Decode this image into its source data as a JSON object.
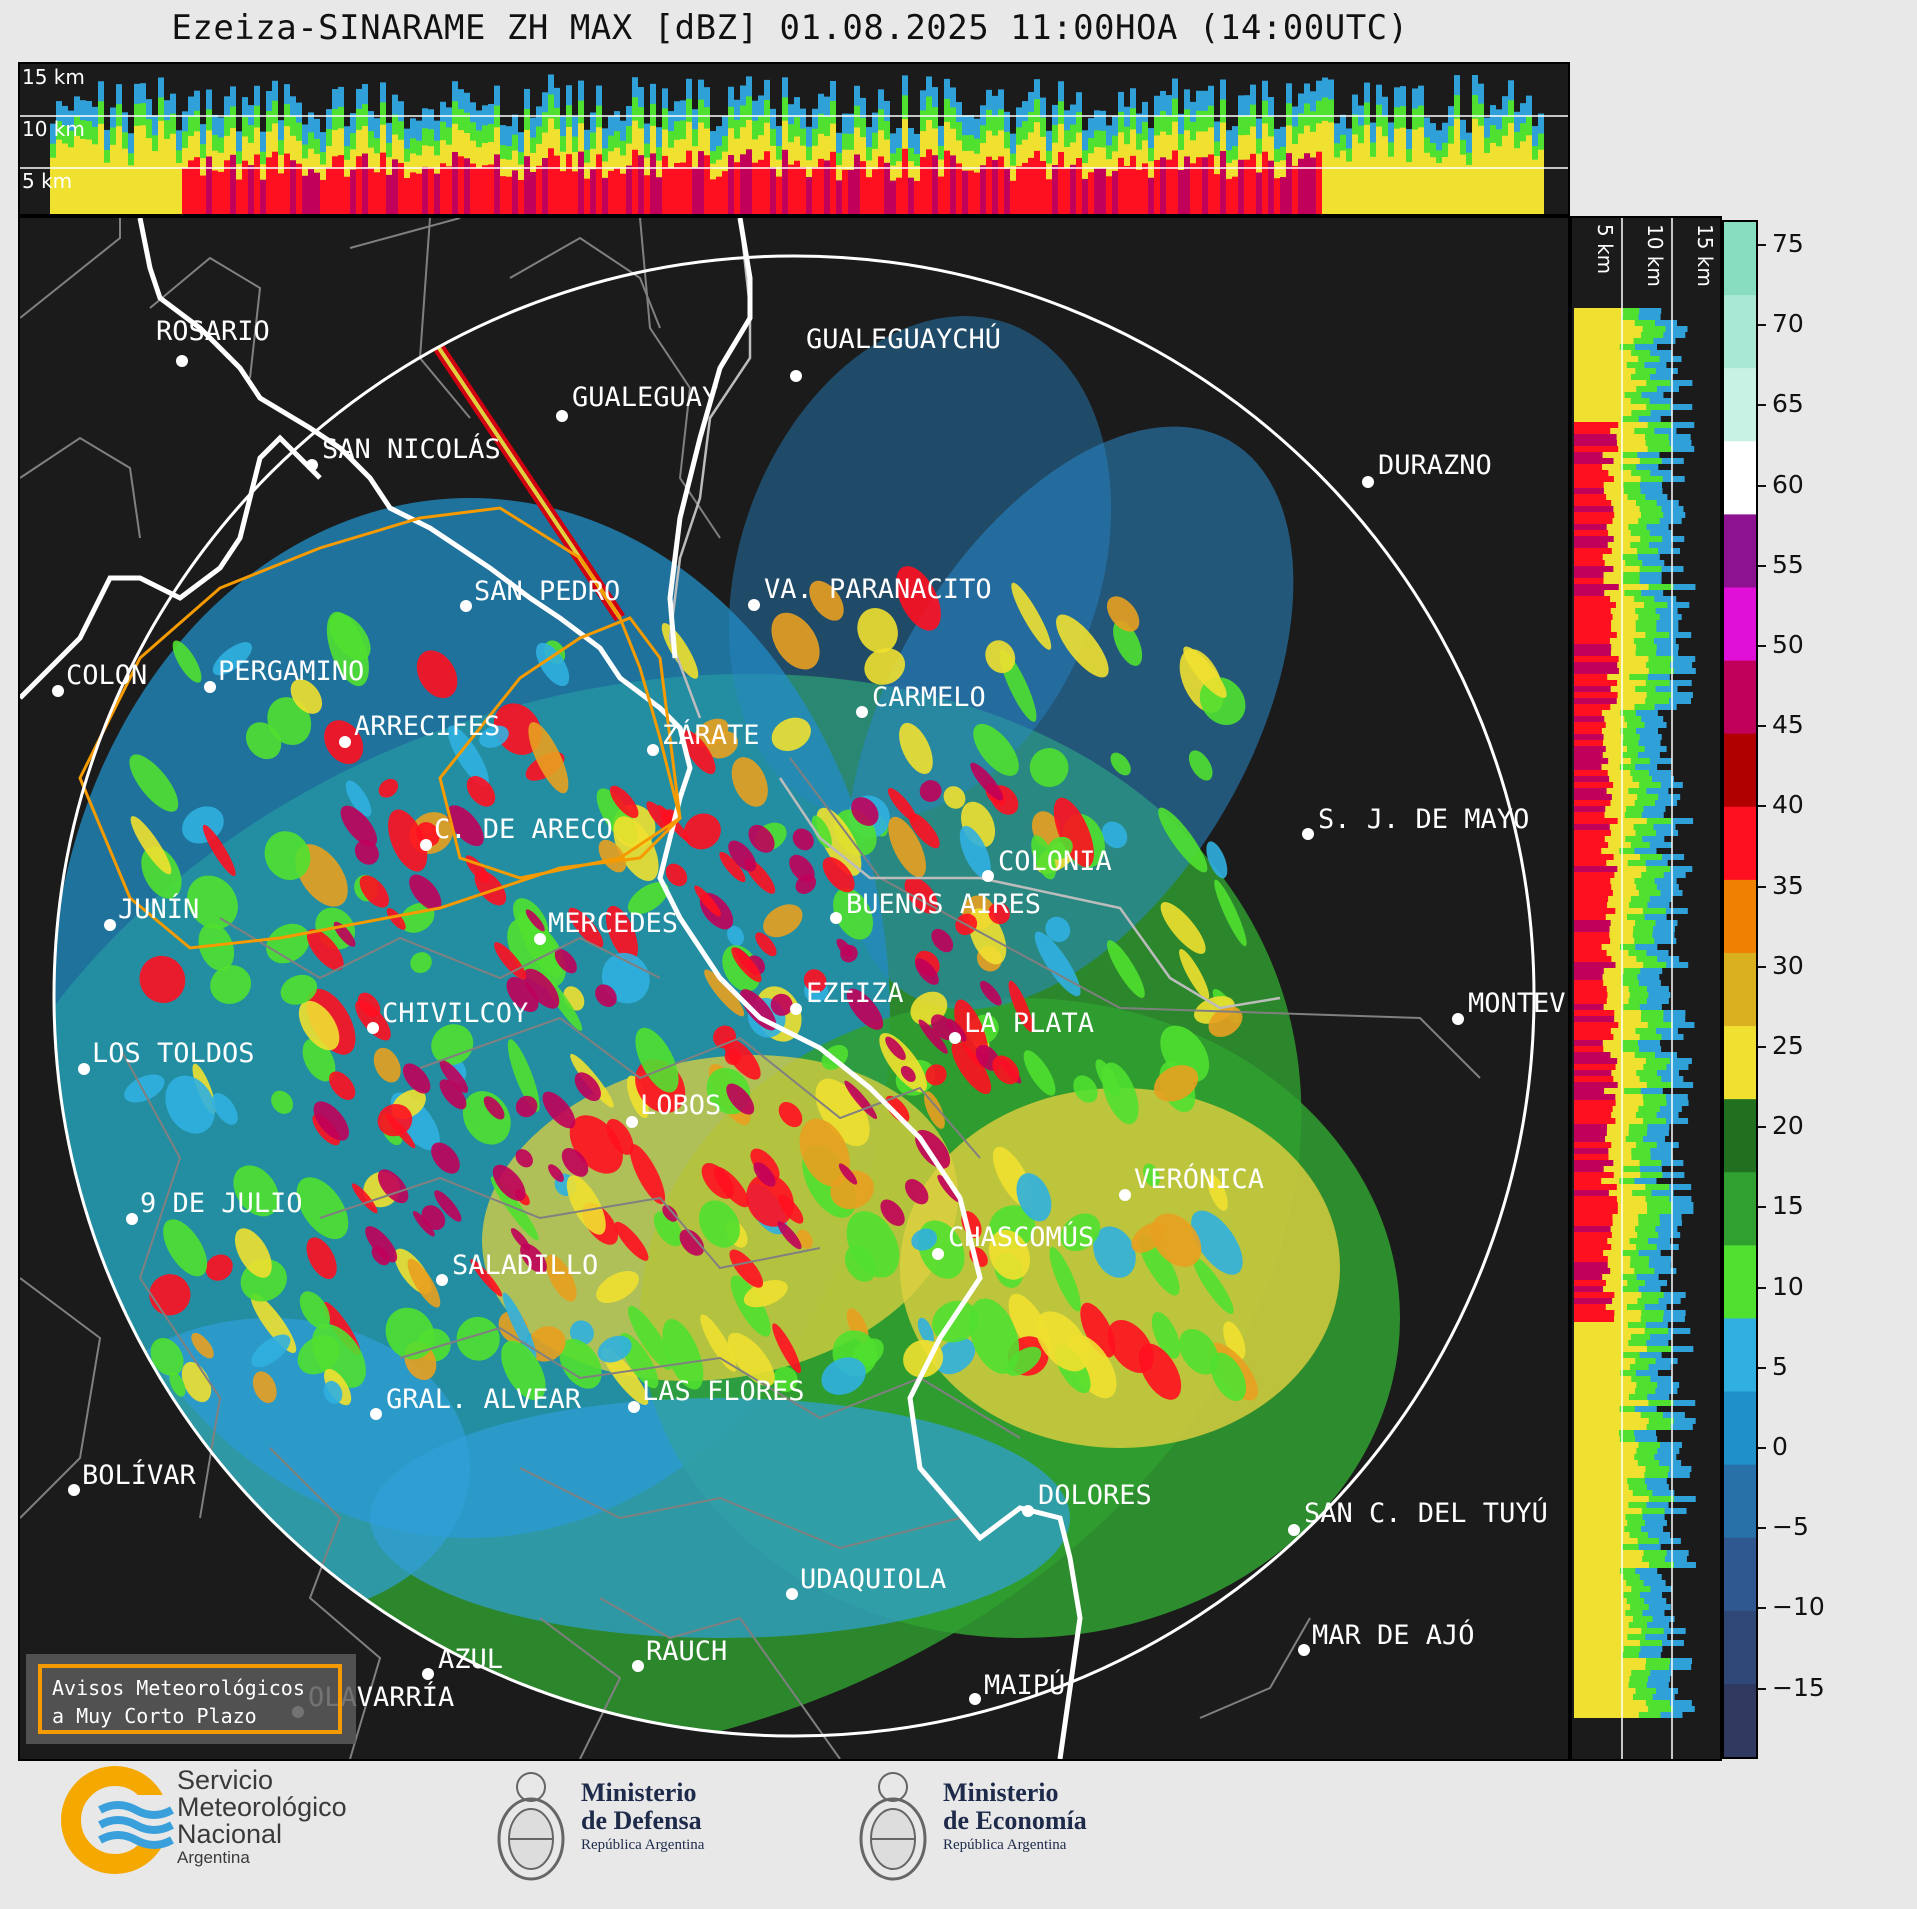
{
  "title": "Ezeiza-SINARAME ZH MAX [dBZ] 01.08.2025 11:00HOA (14:00UTC)",
  "top_profile": {
    "labels": [
      "15 km",
      "10 km",
      "5 km"
    ]
  },
  "side_profile": {
    "labels": [
      "5 km",
      "10 km",
      "15 km"
    ]
  },
  "colorbar": {
    "ticks": [
      "75",
      "70",
      "65",
      "60",
      "55",
      "50",
      "45",
      "40",
      "35",
      "30",
      "25",
      "20",
      "15",
      "10",
      "5",
      "0",
      "−5",
      "−10",
      "−15"
    ],
    "stops": [
      "#88dcc0",
      "#a8e8d4",
      "#c8f2e4",
      "#ffffff",
      "#8c1290",
      "#e010d8",
      "#c0005a",
      "#b00000",
      "#ff1020",
      "#f08000",
      "#d8b020",
      "#f0e030",
      "#207020",
      "#30a030",
      "#50e030",
      "#30b0e0",
      "#2090c8",
      "#2870a8",
      "#305890",
      "#304878",
      "#303a60"
    ]
  },
  "cities": [
    {
      "name": "ROSARIO",
      "color": "#fff"
    },
    {
      "name": "GUALEGUAYCHÚ",
      "color": "#fff"
    },
    {
      "name": "GUALEGUAY",
      "color": "#fff"
    },
    {
      "name": "SAN NICOLÁS",
      "color": "#fff"
    },
    {
      "name": "DURAZNO",
      "color": "#fff"
    },
    {
      "name": "SAN PEDRO",
      "color": "#fff"
    },
    {
      "name": "VA. PARANACITO",
      "color": "#fff"
    },
    {
      "name": "COLON",
      "color": "#fff"
    },
    {
      "name": "PERGAMINO",
      "color": "#fff"
    },
    {
      "name": "CARMELO",
      "color": "#fff"
    },
    {
      "name": "ARRECIFES",
      "color": "#fff"
    },
    {
      "name": "ZÁRATE",
      "color": "#fff"
    },
    {
      "name": "S. J. DE MAYO",
      "color": "#fff"
    },
    {
      "name": "C. DE ARECO",
      "color": "#fff"
    },
    {
      "name": "COLONIA",
      "color": "#fff"
    },
    {
      "name": "JUNÍN",
      "color": "#fff"
    },
    {
      "name": "BUENOS AIRES",
      "color": "#fff"
    },
    {
      "name": "MERCEDES",
      "color": "#fff"
    },
    {
      "name": "MONTEV",
      "color": "#fff"
    },
    {
      "name": "EZEIZA",
      "color": "#fff"
    },
    {
      "name": "CHIVILCOY",
      "color": "#fff"
    },
    {
      "name": "LA PLATA",
      "color": "#fff"
    },
    {
      "name": "LOS TOLDOS",
      "color": "#fff"
    },
    {
      "name": "LOBOS",
      "color": "#fff"
    },
    {
      "name": "VERÓNICA",
      "color": "#fff"
    },
    {
      "name": "9 DE JULIO",
      "color": "#fff"
    },
    {
      "name": "CHASCOMÚS",
      "color": "#fff"
    },
    {
      "name": "SALADILLO",
      "color": "#fff"
    },
    {
      "name": "GRAL. ALVEAR",
      "color": "#fff"
    },
    {
      "name": "LAS FLORES",
      "color": "#fff"
    },
    {
      "name": "BOLÍVAR",
      "color": "#fff"
    },
    {
      "name": "DOLORES",
      "color": "#fff"
    },
    {
      "name": "SAN C. DEL TUYÚ",
      "color": "#fff"
    },
    {
      "name": "UDAQUIOLA",
      "color": "#fff"
    },
    {
      "name": "RAUCH",
      "color": "#fff"
    },
    {
      "name": "MAR DE AJÓ",
      "color": "#fff"
    },
    {
      "name": "AZUL",
      "color": "#fff"
    },
    {
      "name": "OLAVARRÍA",
      "color": "#fff"
    },
    {
      "name": "MAIPÚ",
      "color": "#fff"
    }
  ],
  "alert_box": {
    "line1": "Avisos Meteorológicos",
    "line2": "a Muy Corto Plazo",
    "color": "#f59a00"
  },
  "logos": {
    "smn": {
      "l1": "Servicio",
      "l2": "Meteorológico",
      "l3": "Nacional",
      "l4": "Argentina"
    },
    "defensa": {
      "l1": "Ministerio",
      "l2": "de Defensa",
      "l3": "República Argentina"
    },
    "economia": {
      "l1": "Ministerio",
      "l2": "de Economía",
      "l3": "República Argentina"
    }
  }
}
